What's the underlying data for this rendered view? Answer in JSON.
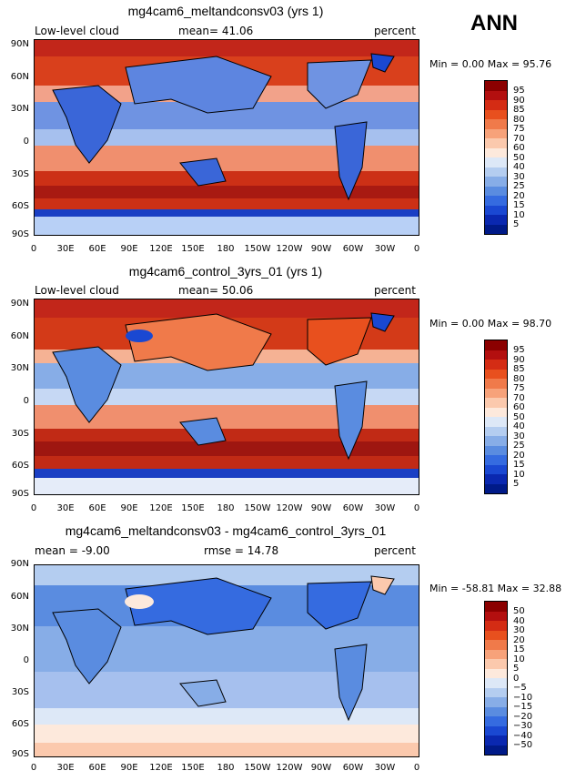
{
  "season": "ANN",
  "lat_ticks": [
    "90N",
    "60N",
    "30N",
    "0",
    "30S",
    "60S",
    "90S"
  ],
  "lon_ticks": [
    "0",
    "30E",
    "60E",
    "90E",
    "120E",
    "150E",
    "180",
    "150W",
    "120W",
    "90W",
    "60W",
    "30W",
    "0"
  ],
  "panels": [
    {
      "title": "mg4cam6_meltandconsv03 (yrs 1)",
      "left_label": "Low-level cloud",
      "center_label": "mean=  41.06",
      "right_label": "percent",
      "min_text": "Min =    0.00 Max =  95.76",
      "colorbar_labels": [
        "95",
        "90",
        "85",
        "80",
        "75",
        "70",
        "60",
        "50",
        "40",
        "30",
        "25",
        "20",
        "15",
        "10",
        "5"
      ]
    },
    {
      "title": "mg4cam6_control_3yrs_01 (yrs 1)",
      "left_label": "Low-level cloud",
      "center_label": "mean=  50.06",
      "right_label": "percent",
      "min_text": "Min =    0.00 Max =  98.70",
      "colorbar_labels": [
        "95",
        "90",
        "85",
        "80",
        "75",
        "70",
        "60",
        "50",
        "40",
        "30",
        "25",
        "20",
        "15",
        "10",
        "5"
      ]
    },
    {
      "title": "mg4cam6_meltandconsv03 - mg4cam6_control_3yrs_01",
      "left_label": "mean =  -9.00",
      "center_label": "rmse =  14.78",
      "right_label": "percent",
      "min_text": "Min = -58.81 Max =  32.88",
      "colorbar_labels": [
        "50",
        "40",
        "30",
        "20",
        "15",
        "10",
        "5",
        "0",
        "−5",
        "−10",
        "−15",
        "−20",
        "−30",
        "−40",
        "−50"
      ]
    }
  ],
  "colors": {
    "abs_scale": [
      "#8b0000",
      "#b30f0f",
      "#d42c14",
      "#e8501e",
      "#f07a4a",
      "#f7a27a",
      "#fbc9ad",
      "#fde9dc",
      "#dde8f7",
      "#b4cdf0",
      "#87ade7",
      "#5a8ce0",
      "#356be0",
      "#1a48d2",
      "#0a28b0",
      "#001a88"
    ],
    "diff_scale": [
      "#8b0000",
      "#b30f0f",
      "#d42c14",
      "#e8501e",
      "#f07a4a",
      "#f7a27a",
      "#fbc9ad",
      "#fde9dc",
      "#dde8f7",
      "#b4cdf0",
      "#87ade7",
      "#5a8ce0",
      "#356be0",
      "#1a48d2",
      "#0a28b0",
      "#001a88"
    ]
  }
}
